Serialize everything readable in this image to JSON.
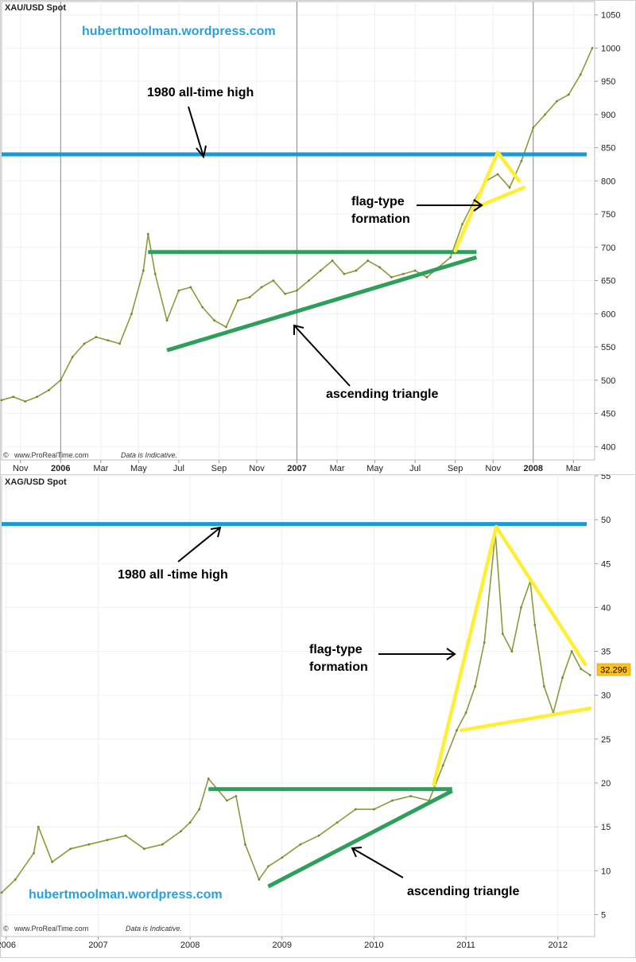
{
  "chart_data": [
    {
      "type": "line",
      "title": "XAU/USD Spot",
      "watermark": "hubertmoolman.wordpress.com",
      "footer": "www.ProRealTime.com",
      "footer_note": "Data is Indicative.",
      "ylim": [
        380,
        1070
      ],
      "xlim": [
        2005.75,
        2008.26
      ],
      "yticks": [
        400,
        450,
        500,
        550,
        600,
        650,
        700,
        750,
        800,
        850,
        900,
        950,
        1000,
        1050
      ],
      "xticks": [
        {
          "x": 2005.83,
          "label": "Nov",
          "bold": false
        },
        {
          "x": 2006.0,
          "label": "2006",
          "bold": true
        },
        {
          "x": 2006.17,
          "label": "Mar",
          "bold": false
        },
        {
          "x": 2006.33,
          "label": "May",
          "bold": false
        },
        {
          "x": 2006.5,
          "label": "Jul",
          "bold": false
        },
        {
          "x": 2006.67,
          "label": "Sep",
          "bold": false
        },
        {
          "x": 2006.83,
          "label": "Nov",
          "bold": false
        },
        {
          "x": 2007.0,
          "label": "2007",
          "bold": true
        },
        {
          "x": 2007.17,
          "label": "Mar",
          "bold": false
        },
        {
          "x": 2007.33,
          "label": "May",
          "bold": false
        },
        {
          "x": 2007.5,
          "label": "Jul",
          "bold": false
        },
        {
          "x": 2007.67,
          "label": "Sep",
          "bold": false
        },
        {
          "x": 2007.83,
          "label": "Nov",
          "bold": false
        },
        {
          "x": 2008.0,
          "label": "2008",
          "bold": true
        },
        {
          "x": 2008.17,
          "label": "Mar",
          "bold": false
        }
      ],
      "year_lines": [
        2006.0,
        2007.0,
        2008.0
      ],
      "series": [
        {
          "x": [
            2005.75,
            2005.8,
            2005.85,
            2005.9,
            2005.95,
            2006.0,
            2006.05,
            2006.1,
            2006.15,
            2006.2,
            2006.25,
            2006.3,
            2006.35,
            2006.37,
            2006.4,
            2006.45,
            2006.5,
            2006.55,
            2006.6,
            2006.65,
            2006.7,
            2006.75,
            2006.8,
            2006.85,
            2006.9,
            2006.95,
            2007.0,
            2007.05,
            2007.1,
            2007.15,
            2007.2,
            2007.25,
            2007.3,
            2007.35,
            2007.4,
            2007.45,
            2007.5,
            2007.55,
            2007.6,
            2007.65,
            2007.7,
            2007.75,
            2007.8,
            2007.85,
            2007.9,
            2007.95,
            2008.0,
            2008.05,
            2008.1,
            2008.15,
            2008.2,
            2008.25
          ],
          "values": [
            470,
            475,
            468,
            475,
            485,
            500,
            535,
            555,
            565,
            560,
            555,
            600,
            665,
            720,
            660,
            590,
            635,
            640,
            610,
            590,
            580,
            620,
            625,
            640,
            650,
            630,
            635,
            650,
            665,
            680,
            660,
            665,
            680,
            670,
            655,
            660,
            665,
            655,
            670,
            685,
            735,
            770,
            800,
            810,
            790,
            830,
            880,
            900,
            920,
            930,
            960,
            1000
          ]
        }
      ],
      "annotations": {
        "resistance_label": "1980 all-time high",
        "flag_label_1": "flag-type",
        "flag_label_2": "formation",
        "triangle_label": "ascending triangle"
      },
      "overlays": {
        "resistance_y": 840,
        "triangle_top": {
          "x1": 2006.37,
          "x2": 2007.76,
          "y": 693
        },
        "triangle_base": {
          "x1": 2006.45,
          "y1": 545,
          "x2": 2007.76,
          "y2": 685
        },
        "flag": [
          {
            "x1": 2007.67,
            "y1": 695,
            "x2": 2007.85,
            "y2": 843
          },
          {
            "x1": 2007.85,
            "y1": 843,
            "x2": 2007.94,
            "y2": 800
          },
          {
            "x1": 2007.77,
            "y1": 762,
            "x2": 2007.96,
            "y2": 790
          }
        ]
      },
      "colors": {
        "resistance": "#1a9ad6",
        "triangle": "#2e9e5b",
        "flag": "#ffee33",
        "watermark": "#2aa0d8"
      }
    },
    {
      "type": "line",
      "title": "XAG/USD Spot",
      "watermark": "hubertmoolman.wordpress.com",
      "footer": "www.ProRealTime.com",
      "footer_note": "Data is Indicative.",
      "last_value": "32.296",
      "ylim": [
        2.5,
        55
      ],
      "xlim": [
        2005.95,
        2012.4
      ],
      "yticks": [
        5,
        10,
        15,
        20,
        25,
        30,
        35,
        40,
        45,
        50,
        55
      ],
      "xticks": [
        {
          "x": 2006.0,
          "label": "2006"
        },
        {
          "x": 2007.0,
          "label": "2007"
        },
        {
          "x": 2008.0,
          "label": "2008"
        },
        {
          "x": 2009.0,
          "label": "2009"
        },
        {
          "x": 2010.0,
          "label": "2010"
        },
        {
          "x": 2011.0,
          "label": "2011"
        },
        {
          "x": 2012.0,
          "label": "2012"
        }
      ],
      "series": [
        {
          "x": [
            2005.95,
            2006.1,
            2006.3,
            2006.35,
            2006.5,
            2006.7,
            2006.9,
            2007.1,
            2007.3,
            2007.5,
            2007.7,
            2007.9,
            2008.0,
            2008.1,
            2008.2,
            2008.4,
            2008.5,
            2008.6,
            2008.75,
            2008.85,
            2009.0,
            2009.2,
            2009.4,
            2009.6,
            2009.8,
            2010.0,
            2010.2,
            2010.4,
            2010.6,
            2010.75,
            2010.9,
            2011.0,
            2011.1,
            2011.2,
            2011.32,
            2011.4,
            2011.5,
            2011.6,
            2011.7,
            2011.75,
            2011.85,
            2011.95,
            2012.05,
            2012.15,
            2012.25,
            2012.35
          ],
          "values": [
            7.5,
            9,
            12,
            15,
            11,
            12.5,
            13,
            13.5,
            14,
            12.5,
            13,
            14.5,
            15.5,
            17,
            20.5,
            18,
            18.5,
            13,
            9,
            10.5,
            11.5,
            13,
            14,
            15.5,
            17,
            17,
            18,
            18.5,
            18,
            22,
            26,
            28,
            31,
            36,
            48.5,
            37,
            35,
            40,
            43,
            38,
            31,
            28,
            32,
            35,
            33,
            32.3
          ]
        }
      ],
      "annotations": {
        "resistance_label": "1980 all -time high",
        "flag_label_1": "flag-type",
        "flag_label_2": "formation",
        "triangle_label": "ascending triangle"
      },
      "overlays": {
        "resistance_y": 49.5,
        "triangle_top": {
          "x1": 2008.2,
          "x2": 2010.85,
          "y": 19.3
        },
        "triangle_base": {
          "x1": 2008.85,
          "y1": 8.2,
          "x2": 2010.85,
          "y2": 19.1
        },
        "flag": [
          {
            "x1": 2010.65,
            "y1": 19.8,
            "x2": 2011.33,
            "y2": 49.2
          },
          {
            "x1": 2011.33,
            "y1": 49.2,
            "x2": 2012.3,
            "y2": 33.5
          },
          {
            "x1": 2010.95,
            "y1": 26,
            "x2": 2012.35,
            "y2": 28.5
          }
        ]
      },
      "colors": {
        "resistance": "#1a9ad6",
        "triangle": "#2e9e5b",
        "flag": "#ffee33",
        "watermark": "#2aa0d8",
        "last_value_bg": "#ffc21a"
      }
    }
  ]
}
